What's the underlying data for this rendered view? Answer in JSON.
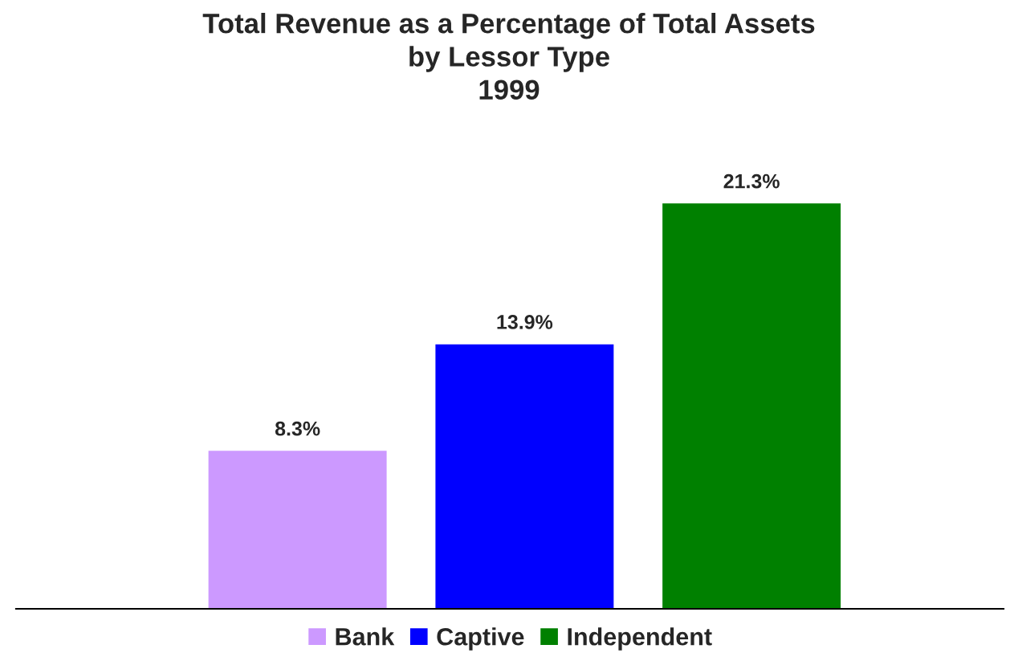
{
  "chart_data": {
    "type": "bar",
    "title": "Total Revenue as a Percentage of Total Assets\nby Lessor Type\n1999",
    "categories": [
      null,
      null,
      null
    ],
    "series": [
      {
        "name": "Bank",
        "color": "#cc99ff",
        "values": [
          8.3,
          null,
          null
        ],
        "value_labels": [
          "8.3%",
          null,
          null
        ]
      },
      {
        "name": "Captive",
        "color": "#0000ff",
        "values": [
          null,
          13.9,
          null
        ],
        "value_labels": [
          null,
          "13.9%",
          null
        ]
      },
      {
        "name": "Independent",
        "color": "#008000",
        "values": [
          null,
          null,
          21.3
        ],
        "value_labels": [
          null,
          null,
          "21.3%"
        ]
      }
    ],
    "stacked": true,
    "legend": "bottom",
    "grid": false
  }
}
